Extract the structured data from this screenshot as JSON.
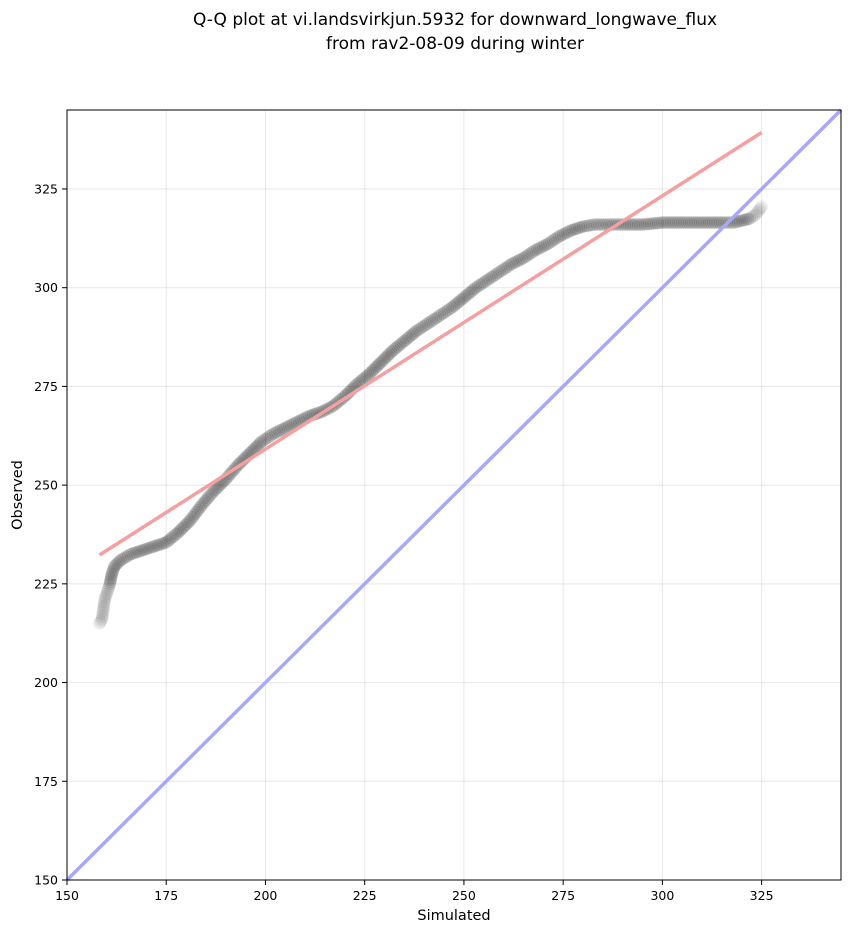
{
  "chart_data": {
    "type": "scatter",
    "title_lines": [
      "Q-Q plot at vi.landsvirkjun.5932 for downward_longwave_flux",
      "from rav2-08-09 during winter"
    ],
    "xlabel": "Simulated",
    "ylabel": "Observed",
    "xlim": [
      150,
      345
    ],
    "ylim": [
      150,
      345
    ],
    "xticks": [
      150,
      175,
      200,
      225,
      250,
      275,
      300,
      325
    ],
    "yticks": [
      150,
      175,
      200,
      225,
      250,
      275,
      300,
      325
    ],
    "grid": true,
    "quantile_curve": [
      [
        158.2,
        215.0
      ],
      [
        158.8,
        216.0
      ],
      [
        159.5,
        221.0
      ],
      [
        160.0,
        222.5
      ],
      [
        160.8,
        225.0
      ],
      [
        161.3,
        227.5
      ],
      [
        162.0,
        229.5
      ],
      [
        163.5,
        231.0
      ],
      [
        166.0,
        232.5
      ],
      [
        169.0,
        233.5
      ],
      [
        172.0,
        234.5
      ],
      [
        175.0,
        235.5
      ],
      [
        178.0,
        238.0
      ],
      [
        181.0,
        241.0
      ],
      [
        184.0,
        245.0
      ],
      [
        187.0,
        248.5
      ],
      [
        190.0,
        251.5
      ],
      [
        193.0,
        255.0
      ],
      [
        196.0,
        258.0
      ],
      [
        199.0,
        261.0
      ],
      [
        202.0,
        263.0
      ],
      [
        205.0,
        264.5
      ],
      [
        208.0,
        266.0
      ],
      [
        211.0,
        267.5
      ],
      [
        214.0,
        268.5
      ],
      [
        217.0,
        270.0
      ],
      [
        220.0,
        272.5
      ],
      [
        223.0,
        275.5
      ],
      [
        226.0,
        278.0
      ],
      [
        229.0,
        281.0
      ],
      [
        232.0,
        284.0
      ],
      [
        235.0,
        286.5
      ],
      [
        238.0,
        289.0
      ],
      [
        241.0,
        291.0
      ],
      [
        244.0,
        293.0
      ],
      [
        247.0,
        295.0
      ],
      [
        250.0,
        297.5
      ],
      [
        253.0,
        300.0
      ],
      [
        256.0,
        302.0
      ],
      [
        259.0,
        304.0
      ],
      [
        262.0,
        306.0
      ],
      [
        265.0,
        307.5
      ],
      [
        268.0,
        309.5
      ],
      [
        271.0,
        311.0
      ],
      [
        274.0,
        313.0
      ],
      [
        277.0,
        314.5
      ],
      [
        280.0,
        315.5
      ],
      [
        283.0,
        316.0
      ],
      [
        286.0,
        316.0
      ],
      [
        290.0,
        316.0
      ],
      [
        295.0,
        316.0
      ],
      [
        300.0,
        316.5
      ],
      [
        305.0,
        316.5
      ],
      [
        310.0,
        316.5
      ],
      [
        315.0,
        316.5
      ],
      [
        318.0,
        316.5
      ],
      [
        320.0,
        317.0
      ],
      [
        322.0,
        317.5
      ],
      [
        323.5,
        318.5
      ],
      [
        325.0,
        320.5
      ]
    ],
    "point_color": "#000000",
    "fit_line": {
      "x": [
        158.2,
        325.0
      ],
      "y": [
        232.3,
        339.3
      ],
      "color": "#f4a0a0"
    },
    "identity_line": {
      "x": [
        150,
        345
      ],
      "y": [
        150,
        345
      ],
      "color": "#a8a8f8"
    }
  }
}
